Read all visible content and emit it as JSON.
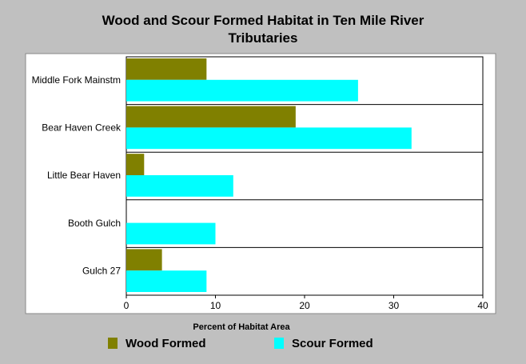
{
  "chart_data": {
    "type": "hbar",
    "title": "Wood and Scour Formed Habitat in Ten Mile River Tributaries",
    "xlabel": "Percent of Habitat Area",
    "categories": [
      "Middle Fork Mainstm",
      "Bear Haven Creek",
      "Little Bear Haven",
      "Booth Gulch",
      "Gulch 27"
    ],
    "series": [
      {
        "name": "Wood Formed",
        "color": "#808000",
        "values": [
          9,
          19,
          2,
          0,
          4
        ]
      },
      {
        "name": "Scour Formed",
        "color": "#00ffff",
        "values": [
          26,
          32,
          12,
          10,
          9
        ]
      }
    ],
    "xlim": [
      0,
      40
    ],
    "xticks": [
      0,
      10,
      20,
      30,
      40
    ]
  }
}
